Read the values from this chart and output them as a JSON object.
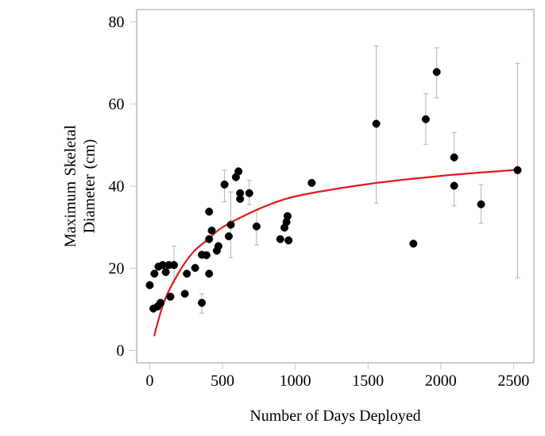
{
  "chart_data": {
    "type": "scatter",
    "xlabel": "Number of Days Deployed",
    "ylabel": "Maximum Skeletal Diameter (cm)",
    "xlim": [
      -90,
      2640
    ],
    "ylim": [
      -3,
      83
    ],
    "xticks": [
      0,
      500,
      1000,
      1500,
      2000,
      2500
    ],
    "yticks": [
      0,
      20,
      40,
      60,
      80
    ],
    "grid": false,
    "series": [
      {
        "color": "#000000",
        "marker": "circle",
        "x": [
          0,
          25,
          53,
          32,
          60,
          89,
          131,
          110,
          167,
          74,
          142,
          241,
          255,
          312,
          358,
          358,
          390,
          408,
          408,
          426,
          408,
          461,
          472,
          514,
          543,
          557,
          592,
          610,
          621,
          621,
          684,
          734,
          897,
          926,
          940,
          947,
          954,
          1113,
          1557,
          1812,
          1897,
          1972,
          2092,
          2092,
          2277,
          2528
        ],
        "values": [
          15.9,
          10.2,
          10.7,
          18.7,
          20.4,
          20.8,
          20.8,
          19.1,
          20.8,
          11.6,
          13.1,
          13.8,
          18.7,
          20.1,
          23.3,
          11.6,
          23.2,
          27.1,
          18.7,
          29.2,
          33.8,
          24.3,
          25.4,
          40.4,
          27.8,
          30.6,
          42.2,
          43.6,
          38.3,
          36.9,
          38.3,
          30.2,
          27.1,
          29.9,
          31.3,
          32.7,
          26.8,
          40.8,
          55.2,
          26.0,
          56.3,
          67.8,
          47.0,
          40.1,
          35.6,
          43.9
        ],
        "errors": [
          null,
          null,
          null,
          null,
          null,
          null,
          null,
          null,
          [
            16.6,
            25.4
          ],
          null,
          null,
          null,
          null,
          null,
          null,
          [
            9.1,
            13.8
          ],
          null,
          null,
          null,
          null,
          null,
          null,
          null,
          [
            36.2,
            43.9
          ],
          null,
          [
            22.6,
            38.6
          ],
          null,
          null,
          null,
          null,
          [
            35.5,
            41.4
          ],
          [
            25.7,
            34.1
          ],
          null,
          null,
          null,
          null,
          null,
          null,
          [
            35.9,
            74.1
          ],
          null,
          [
            50.2,
            62.5
          ],
          [
            61.5,
            73.7
          ],
          [
            47.0,
            53.1
          ],
          [
            35.2,
            40.1
          ],
          [
            31.0,
            40.4
          ],
          [
            17.7,
            69.9
          ]
        ]
      },
      {
        "type": "line",
        "color": "#e41a1c",
        "marker": "none",
        "line_style": "solid",
        "x": [
          30,
          100,
          200,
          300,
          400,
          500,
          750,
          1000,
          1500,
          2000,
          2528
        ],
        "values": [
          3.5,
          12,
          19,
          24,
          27,
          30,
          34.5,
          37.5,
          40.5,
          42.5,
          44
        ]
      }
    ]
  }
}
